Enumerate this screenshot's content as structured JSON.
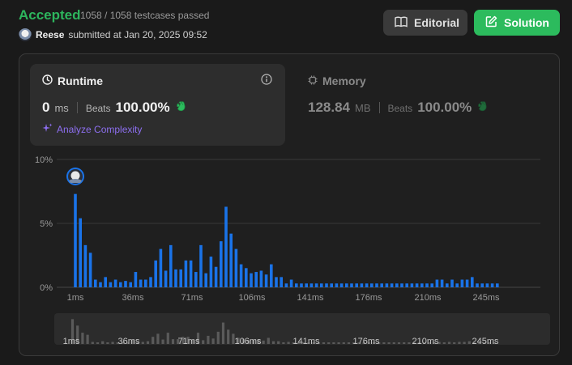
{
  "header": {
    "status": "Accepted",
    "testcases": "1058 / 1058 testcases passed",
    "user": "Reese",
    "submitted": "submitted at Jan 20, 2025 09:52"
  },
  "buttons": {
    "editorial": "Editorial",
    "solution": "Solution"
  },
  "runtime": {
    "title": "Runtime",
    "value": "0",
    "unit": "ms",
    "beats_label": "Beats",
    "beats": "100.00%",
    "analyze": "Analyze Complexity"
  },
  "memory": {
    "title": "Memory",
    "value": "128.84",
    "unit": "MB",
    "beats_label": "Beats",
    "beats": "100.00%"
  },
  "colors": {
    "accent_green": "#2cbb5d",
    "bar_blue": "#1a73e8",
    "overview_gray": "#5a5a5a",
    "analyze_purple": "#8d6ff0"
  },
  "chart_data": {
    "type": "bar",
    "title": "",
    "xlabel": "",
    "ylabel": "",
    "ylim": [
      0,
      10
    ],
    "y_ticks": [
      "10%",
      "5%",
      "0%"
    ],
    "x_ticks": [
      "1ms",
      "36ms",
      "71ms",
      "106ms",
      "141ms",
      "176ms",
      "210ms",
      "245ms"
    ],
    "grid": true,
    "highlight": "1ms",
    "series": [
      {
        "values": [
          7.3,
          5.4,
          3.3,
          2.7,
          0.6,
          0.4,
          0.8,
          0.4,
          0.6,
          0.4,
          0.5,
          0.4,
          1.2,
          0.6,
          0.6,
          0.8,
          2.1,
          3.0,
          1.3,
          3.3,
          1.4,
          1.4,
          2.1,
          2.1,
          1.2,
          3.3,
          1.1,
          2.4,
          1.6,
          3.6,
          6.3,
          4.2,
          3.0,
          1.8,
          1.5,
          1.1,
          1.2,
          1.3,
          1.0,
          1.8,
          0.8,
          0.8,
          0.3,
          0.6,
          0.3,
          0.3,
          0.3,
          0.3,
          0.3,
          0.3,
          0.3,
          0.3,
          0.3,
          0.3,
          0.3,
          0.3,
          0.3,
          0.3,
          0.3,
          0.3,
          0.3,
          0.3,
          0.3,
          0.3,
          0.3,
          0.3,
          0.3,
          0.3,
          0.3,
          0.3,
          0.3,
          0.3,
          0.6,
          0.6,
          0.3,
          0.6,
          0.3,
          0.6,
          0.6,
          0.8,
          0.3,
          0.3,
          0.3,
          0.3,
          0.3
        ]
      }
    ]
  }
}
